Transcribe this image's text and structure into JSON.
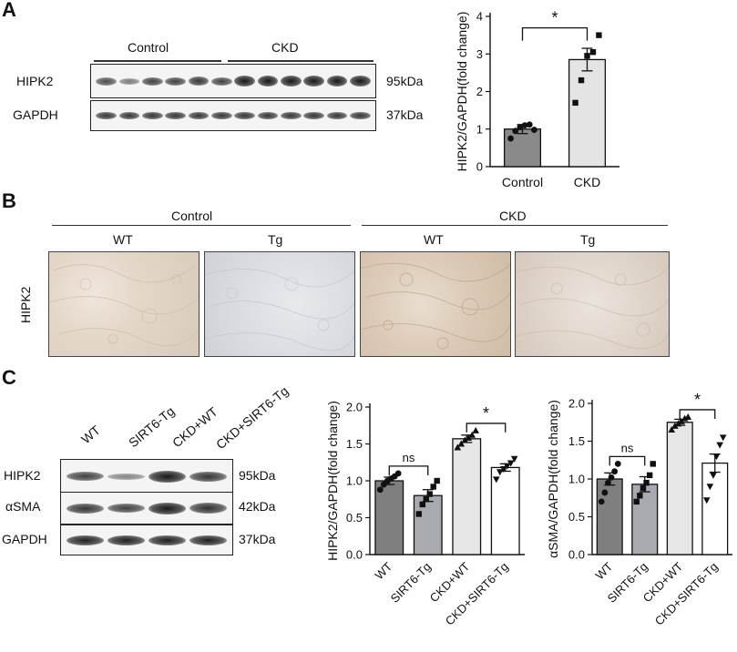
{
  "panels": {
    "a": "A",
    "b": "B",
    "c": "C"
  },
  "blotA": {
    "groups": [
      "Control",
      "CKD"
    ],
    "rows": [
      {
        "label": "HIPK2",
        "size": "95kDa"
      },
      {
        "label": "GAPDH",
        "size": "37kDa"
      }
    ]
  },
  "micro": {
    "groups": [
      "Control",
      "CKD"
    ],
    "subgroups": [
      "WT",
      "Tg",
      "WT",
      "Tg"
    ],
    "row_label": "HIPK2"
  },
  "blotC": {
    "lanes": [
      "WT",
      "SIRT6-Tg",
      "CKD+WT",
      "CKD+SIRT6-Tg"
    ],
    "rows": [
      {
        "label": "HIPK2",
        "size": "95kDa"
      },
      {
        "label": "αSMA",
        "size": "42kDa"
      },
      {
        "label": "GAPDH",
        "size": "37kDa"
      }
    ]
  },
  "chart_data": [
    {
      "type": "bar",
      "ylabel": "HIPK2/GAPDH(fold change)",
      "categories": [
        "Control",
        "CKD"
      ],
      "values": [
        1.0,
        2.85
      ],
      "errors": [
        0.12,
        0.3
      ],
      "points": [
        [
          0.75,
          0.95,
          1.05,
          1.1,
          1.12,
          0.98
        ],
        [
          1.7,
          2.3,
          2.95,
          3.05,
          3.5
        ]
      ],
      "colors": [
        "#8a8a8a",
        "#e4e4e4"
      ],
      "ylim": [
        0,
        4
      ],
      "yticks": [
        0,
        1,
        2,
        3,
        4
      ],
      "significance": [
        {
          "from": 0,
          "to": 1,
          "label": "*"
        }
      ]
    },
    {
      "type": "bar",
      "ylabel": "HIPK2/GAPDH(fold change)",
      "categories": [
        "WT",
        "SIRT6-Tg",
        "CKD+WT",
        "CKD+SIRT6-Tg"
      ],
      "values": [
        1.0,
        0.8,
        1.57,
        1.18
      ],
      "errors": [
        0.05,
        0.08,
        0.05,
        0.05
      ],
      "points": [
        [
          0.88,
          0.95,
          1.0,
          1.03,
          1.06,
          1.1
        ],
        [
          0.55,
          0.68,
          0.75,
          0.82,
          0.92,
          1.0
        ],
        [
          1.45,
          1.5,
          1.55,
          1.58,
          1.62,
          1.68
        ],
        [
          1.02,
          1.12,
          1.16,
          1.2,
          1.24,
          1.3
        ]
      ],
      "colors": [
        "#7f7f7f",
        "#a9a9b0",
        "#e6e6e6",
        "#ffffff"
      ],
      "ylim": [
        0,
        2.0
      ],
      "yticks": [
        "0.0",
        "0.5",
        "1.0",
        "1.5",
        "2.0"
      ],
      "significance": [
        {
          "from": 0,
          "to": 1,
          "label": "ns"
        },
        {
          "from": 2,
          "to": 3,
          "label": "*"
        }
      ]
    },
    {
      "type": "bar",
      "ylabel": "αSMA/GAPDH(fold change)",
      "categories": [
        "WT",
        "SIRT6-Tg",
        "CKD+WT",
        "CKD+SIRT6-Tg"
      ],
      "values": [
        1.0,
        0.93,
        1.75,
        1.21
      ],
      "errors": [
        0.08,
        0.1,
        0.04,
        0.12
      ],
      "points": [
        [
          0.7,
          0.82,
          0.95,
          1.02,
          1.1,
          1.2
        ],
        [
          0.7,
          0.78,
          0.88,
          0.95,
          1.05,
          1.2
        ],
        [
          1.65,
          1.7,
          1.73,
          1.76,
          1.8,
          1.82
        ],
        [
          0.72,
          0.9,
          1.05,
          1.3,
          1.45,
          1.55
        ]
      ],
      "colors": [
        "#7f7f7f",
        "#a9a9b0",
        "#e6e6e6",
        "#ffffff"
      ],
      "ylim": [
        0,
        2.0
      ],
      "yticks": [
        "0.0",
        "0.5",
        "1.0",
        "1.5",
        "2.0"
      ],
      "significance": [
        {
          "from": 0,
          "to": 1,
          "label": "ns"
        },
        {
          "from": 2,
          "to": 3,
          "label": "*"
        }
      ]
    }
  ]
}
